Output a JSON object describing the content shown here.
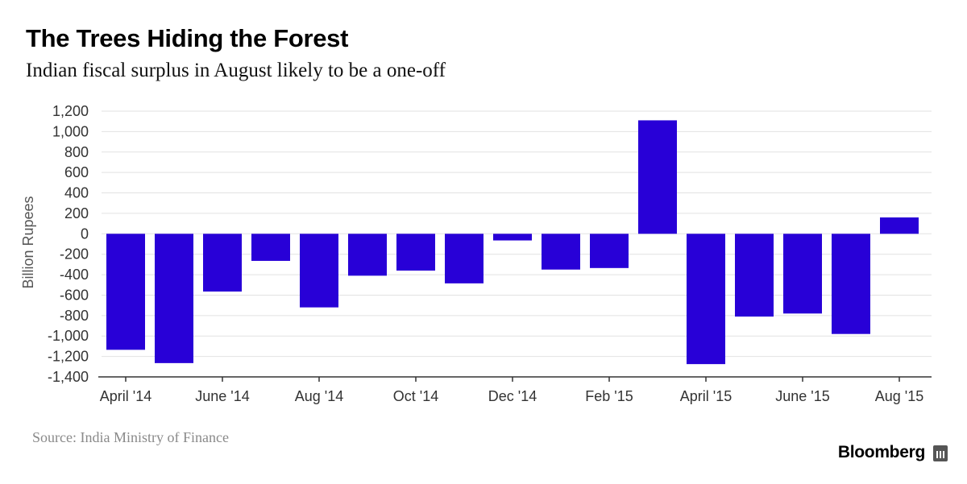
{
  "header": {
    "title": "The Trees Hiding the Forest",
    "subtitle": "Indian fiscal surplus in August likely to be a one-off"
  },
  "footer": {
    "source": "Source: India Ministry of Finance",
    "brand": "Bloomberg"
  },
  "colors": {
    "bar": "#2800d7",
    "grid": "#e2e2e2",
    "axis": "#333333",
    "tick_text": "#333333",
    "ylabel_text": "#555555"
  },
  "chart_data": {
    "type": "bar",
    "categories": [
      "April '14",
      "May '14",
      "June '14",
      "July '14",
      "Aug '14",
      "Sept '14",
      "Oct '14",
      "Nov '14",
      "Dec '14",
      "Jan '15",
      "Feb '15",
      "Mar '15",
      "April '15",
      "May '15",
      "June '15",
      "July '15",
      "Aug '15"
    ],
    "values": [
      -1135,
      -1265,
      -565,
      -265,
      -720,
      -410,
      -360,
      -485,
      -65,
      -350,
      -335,
      1110,
      -1275,
      -810,
      -780,
      -980,
      160
    ],
    "x_tick_labels": [
      "April '14",
      "",
      "June '14",
      "",
      "Aug '14",
      "",
      "Oct '14",
      "",
      "Dec '14",
      "",
      "Feb '15",
      "",
      "April '15",
      "",
      "June '15",
      "",
      "Aug '15"
    ],
    "ylabel": "Billion Rupees",
    "ylim": [
      -1400,
      1200
    ],
    "yticks": [
      1200,
      1000,
      800,
      600,
      400,
      200,
      0,
      -200,
      -400,
      -600,
      -800,
      -1000,
      -1200,
      -1400
    ],
    "ytick_labels": [
      "1,200",
      "1,000",
      "800",
      "600",
      "400",
      "200",
      "0",
      "-200",
      "-400",
      "-600",
      "-800",
      "-1,000",
      "-1,200",
      "-1,400"
    ],
    "grid": true,
    "legend": "none"
  }
}
